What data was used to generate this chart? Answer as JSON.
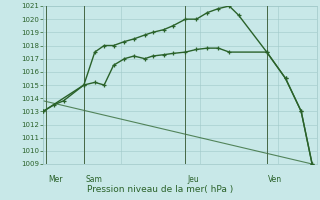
{
  "title": "Pression niveau de la mer( hPa )",
  "background_color": "#c8e8e8",
  "grid_color": "#a0c8c8",
  "line_color": "#2a622a",
  "ylim": [
    1009,
    1021
  ],
  "xlim": [
    0,
    17.5
  ],
  "yticks": [
    1009,
    1010,
    1011,
    1012,
    1013,
    1014,
    1015,
    1016,
    1017,
    1018,
    1019,
    1020,
    1021
  ],
  "day_labels": [
    "Mer",
    "Sam",
    "Jeu",
    "Ven"
  ],
  "day_vline_x": [
    0.2,
    2.6,
    9.1,
    14.3
  ],
  "series1_x": [
    0.0,
    0.7,
    1.3,
    2.6,
    3.3,
    3.9,
    4.5,
    5.2,
    5.8,
    6.5,
    7.0,
    7.7,
    8.3,
    9.1,
    9.8,
    10.5,
    11.2,
    11.9,
    12.5,
    14.3,
    15.5,
    16.5,
    17.2
  ],
  "series1_y": [
    1013.0,
    1013.5,
    1013.8,
    1015.0,
    1017.5,
    1018.0,
    1018.0,
    1018.3,
    1018.5,
    1018.8,
    1019.0,
    1019.2,
    1019.5,
    1020.0,
    1020.0,
    1020.5,
    1020.8,
    1021.0,
    1020.3,
    1017.5,
    1015.5,
    1013.0,
    1009.0
  ],
  "series2_x": [
    0.0,
    2.6,
    3.3,
    3.9,
    4.5,
    5.2,
    5.8,
    6.5,
    7.0,
    7.7,
    8.3,
    9.1,
    9.8,
    10.5,
    11.2,
    11.9,
    14.3,
    15.5,
    16.5,
    17.2
  ],
  "series2_y": [
    1013.0,
    1015.0,
    1015.2,
    1015.0,
    1016.5,
    1017.0,
    1017.2,
    1017.0,
    1017.2,
    1017.3,
    1017.4,
    1017.5,
    1017.7,
    1017.8,
    1017.8,
    1017.5,
    1017.5,
    1015.5,
    1013.0,
    1009.0
  ],
  "series3_x": [
    0.0,
    17.2
  ],
  "series3_y": [
    1013.8,
    1009.0
  ]
}
